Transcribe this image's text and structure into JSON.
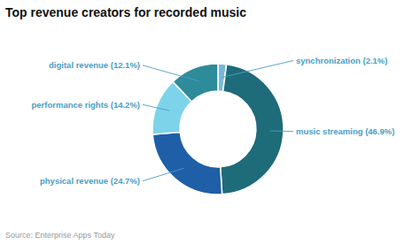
{
  "chart_data": {
    "type": "donut",
    "title": "Top revenue creators for recorded music",
    "values": [
      2.1,
      46.9,
      24.7,
      14.2,
      12.1
    ],
    "value_labels": [
      "synchronization (2.1%)",
      "music streaming (46.9%)",
      "physical revenue (24.7%)",
      "performance rights (14.2%)",
      "digital revenue (12.1%)"
    ],
    "colors": [
      "#7ab8d9",
      "#1e6b7a",
      "#1e5fa8",
      "#7dd4ea",
      "#2e8b9a"
    ],
    "data_labels": true,
    "annotations": [
      "Source: Enterprise Apps Today"
    ]
  }
}
